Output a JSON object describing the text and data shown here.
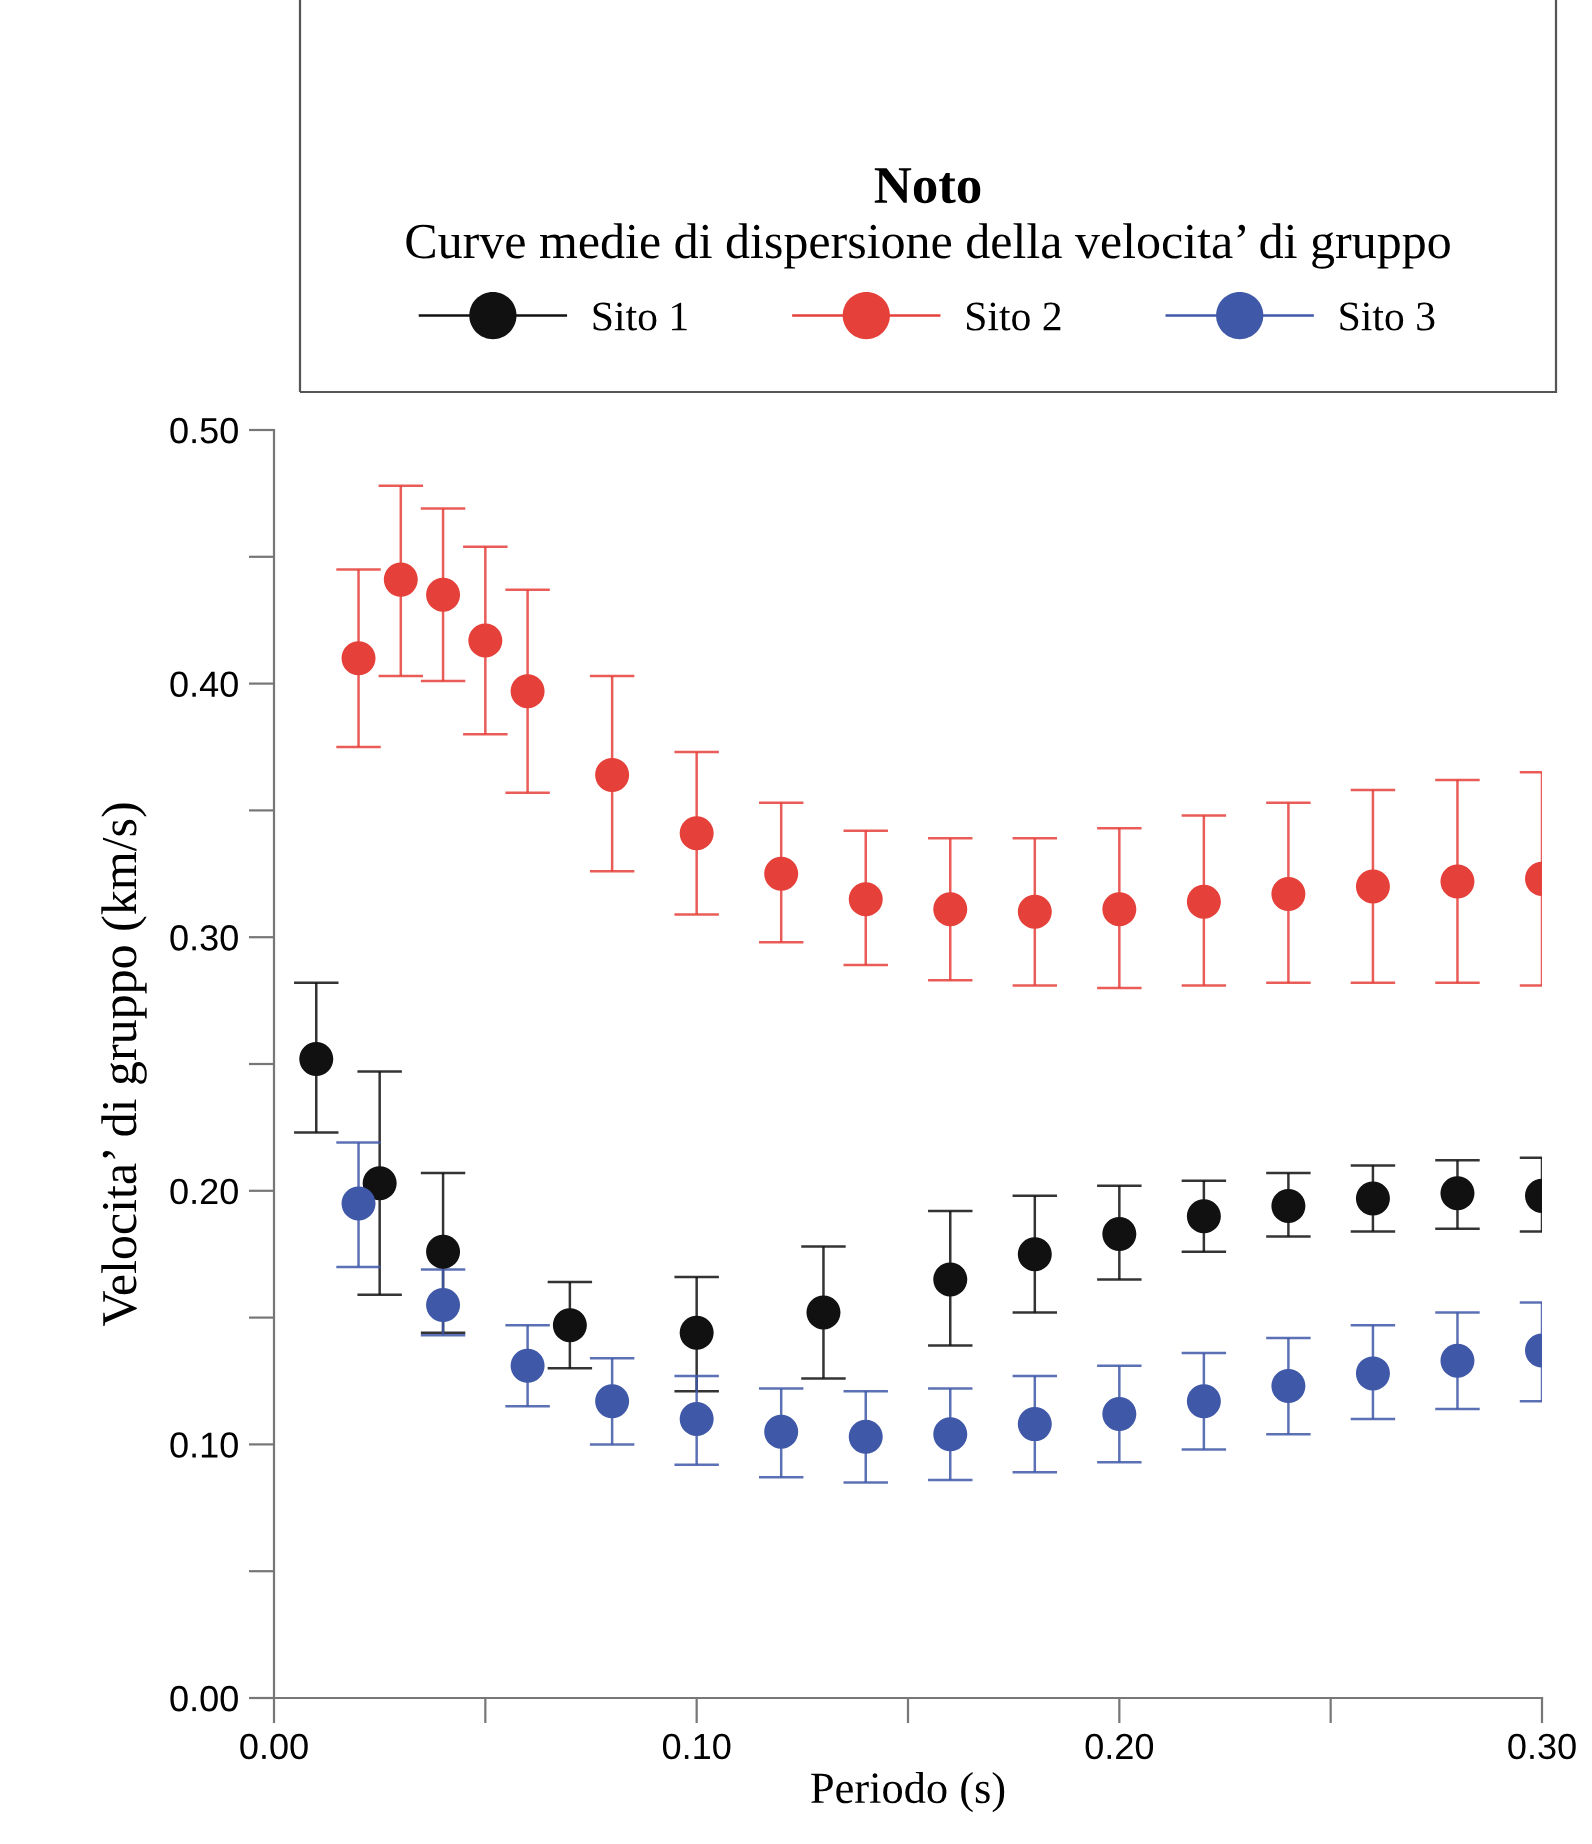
{
  "chart_data": {
    "type": "scatter",
    "title": "Noto",
    "subtitle": "Curve medie di dispersione della velocita’ di gruppo",
    "xlabel": "Periodo (s)",
    "ylabel": "Velocita’ di gruppo (km/s)",
    "xlim": [
      0,
      0.3
    ],
    "ylim": [
      0,
      0.5
    ],
    "xticks": [
      {
        "value": 0,
        "label": "0.00"
      },
      {
        "value": 0.05,
        "label": null
      },
      {
        "value": 0.1,
        "label": "0.10"
      },
      {
        "value": 0.15,
        "label": null
      },
      {
        "value": 0.2,
        "label": "0.20"
      },
      {
        "value": 0.25,
        "label": null
      },
      {
        "value": 0.3,
        "label": "0.30"
      }
    ],
    "yticks": [
      {
        "value": 0,
        "label": "0.00"
      },
      {
        "value": 0.05,
        "label": null
      },
      {
        "value": 0.1,
        "label": "0.10"
      },
      {
        "value": 0.15,
        "label": null
      },
      {
        "value": 0.2,
        "label": "0.20"
      },
      {
        "value": 0.25,
        "label": null
      },
      {
        "value": 0.3,
        "label": "0.30"
      },
      {
        "value": 0.35,
        "label": null
      },
      {
        "value": 0.4,
        "label": "0.40"
      },
      {
        "value": 0.45,
        "label": null
      },
      {
        "value": 0.5,
        "label": "0.50"
      }
    ],
    "grid": false,
    "legend": "top",
    "marker": "circle",
    "series": [
      {
        "name": "Sito 1",
        "color": "#111111",
        "x": [
          0.01,
          0.025,
          0.04,
          0.07,
          0.1,
          0.13,
          0.16,
          0.18,
          0.2,
          0.22,
          0.24,
          0.26,
          0.28,
          0.3
        ],
        "values": [
          0.252,
          0.203,
          0.176,
          0.147,
          0.144,
          0.152,
          0.165,
          0.175,
          0.183,
          0.19,
          0.194,
          0.197,
          0.199,
          0.198
        ],
        "errors": [
          [
            0.223,
            0.282
          ],
          [
            0.159,
            0.247
          ],
          [
            0.144,
            0.207
          ],
          [
            0.13,
            0.164
          ],
          [
            0.121,
            0.166
          ],
          [
            0.126,
            0.178
          ],
          [
            0.139,
            0.192
          ],
          [
            0.152,
            0.198
          ],
          [
            0.165,
            0.202
          ],
          [
            0.176,
            0.204
          ],
          [
            0.182,
            0.207
          ],
          [
            0.184,
            0.21
          ],
          [
            0.185,
            0.212
          ],
          [
            0.184,
            0.213
          ]
        ]
      },
      {
        "name": "Sito 2",
        "color": "#e5403a",
        "x": [
          0.02,
          0.03,
          0.04,
          0.05,
          0.06,
          0.08,
          0.1,
          0.12,
          0.14,
          0.16,
          0.18,
          0.2,
          0.22,
          0.24,
          0.26,
          0.28,
          0.3
        ],
        "values": [
          0.41,
          0.441,
          0.435,
          0.417,
          0.397,
          0.364,
          0.341,
          0.325,
          0.315,
          0.311,
          0.31,
          0.311,
          0.314,
          0.317,
          0.32,
          0.322,
          0.323
        ],
        "errors": [
          [
            0.375,
            0.445
          ],
          [
            0.403,
            0.478
          ],
          [
            0.401,
            0.469
          ],
          [
            0.38,
            0.454
          ],
          [
            0.357,
            0.437
          ],
          [
            0.326,
            0.403
          ],
          [
            0.309,
            0.373
          ],
          [
            0.298,
            0.353
          ],
          [
            0.289,
            0.342
          ],
          [
            0.283,
            0.339
          ],
          [
            0.281,
            0.339
          ],
          [
            0.28,
            0.343
          ],
          [
            0.281,
            0.348
          ],
          [
            0.282,
            0.353
          ],
          [
            0.282,
            0.358
          ],
          [
            0.282,
            0.362
          ],
          [
            0.281,
            0.365
          ]
        ]
      },
      {
        "name": "Sito 3",
        "color": "#4058a8",
        "x": [
          0.02,
          0.04,
          0.06,
          0.08,
          0.1,
          0.12,
          0.14,
          0.16,
          0.18,
          0.2,
          0.22,
          0.24,
          0.26,
          0.28,
          0.3
        ],
        "values": [
          0.195,
          0.155,
          0.131,
          0.117,
          0.11,
          0.105,
          0.103,
          0.104,
          0.108,
          0.112,
          0.117,
          0.123,
          0.128,
          0.133,
          0.137
        ],
        "errors": [
          [
            0.17,
            0.219
          ],
          [
            0.143,
            0.169
          ],
          [
            0.115,
            0.147
          ],
          [
            0.1,
            0.134
          ],
          [
            0.092,
            0.127
          ],
          [
            0.087,
            0.122
          ],
          [
            0.085,
            0.121
          ],
          [
            0.086,
            0.122
          ],
          [
            0.089,
            0.127
          ],
          [
            0.093,
            0.131
          ],
          [
            0.098,
            0.136
          ],
          [
            0.104,
            0.142
          ],
          [
            0.11,
            0.147
          ],
          [
            0.114,
            0.152
          ],
          [
            0.117,
            0.156
          ]
        ]
      }
    ]
  }
}
